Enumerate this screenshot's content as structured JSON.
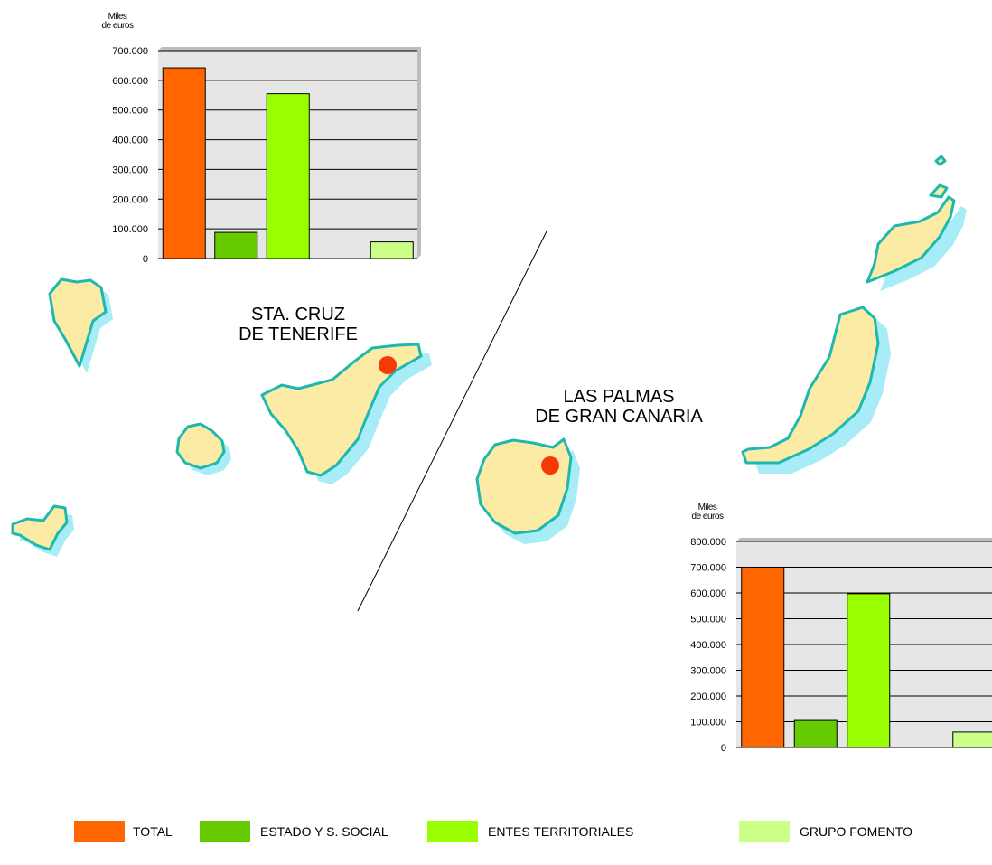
{
  "regions": {
    "tenerife": {
      "line1": "STA. CRUZ",
      "line2": "DE TENERIFE"
    },
    "palmas": {
      "line1": "LAS PALMAS",
      "line2": "DE GRAN CANARIA"
    }
  },
  "colors": {
    "island_fill": "#FBEBA5",
    "island_outline": "#1DB8AE",
    "island_shadow": "#A8ECF8",
    "capital_dot": "#F53A07",
    "plot_bg": "#E6E6E6"
  },
  "chart_data": [
    {
      "type": "bar",
      "region": "STA. CRUZ DE TENERIFE",
      "unit_label": [
        "Miles",
        "de euros"
      ],
      "categories": [
        "TOTAL",
        "ESTADO Y S. SOCIAL",
        "ENTES TERRITORIALES",
        "GRUPO FOMENTO"
      ],
      "slots": [
        0,
        1,
        2,
        4
      ],
      "values": [
        642000,
        88000,
        555000,
        56000
      ],
      "colors": [
        "#FF6600",
        "#66CC00",
        "#99FF00",
        "#CCFF88"
      ],
      "ylim": [
        0,
        700000
      ],
      "yticks": [
        0,
        100000,
        200000,
        300000,
        400000,
        500000,
        600000,
        700000
      ],
      "ytick_labels": [
        "0",
        "100.000",
        "200.000",
        "300.000",
        "400.000",
        "500.000",
        "600.000",
        "700.000"
      ],
      "grid": true
    },
    {
      "type": "bar",
      "region": "LAS PALMAS DE GRAN CANARIA",
      "unit_label": [
        "Miles",
        "de euros"
      ],
      "categories": [
        "TOTAL",
        "ESTADO Y S. SOCIAL",
        "ENTES TERRITORIALES",
        "GRUPO FOMENTO"
      ],
      "slots": [
        0,
        1,
        2,
        4
      ],
      "values": [
        700000,
        105000,
        597000,
        60000
      ],
      "colors": [
        "#FF6600",
        "#66CC00",
        "#99FF00",
        "#CCFF88"
      ],
      "ylim": [
        0,
        800000
      ],
      "yticks": [
        0,
        100000,
        200000,
        300000,
        400000,
        500000,
        600000,
        700000,
        800000
      ],
      "ytick_labels": [
        "0",
        "100.000",
        "200.000",
        "300.000",
        "400.000",
        "500.000",
        "600.000",
        "700.000",
        "800.000"
      ],
      "grid": true
    }
  ],
  "legend": [
    {
      "label": "TOTAL",
      "color": "#FF6600"
    },
    {
      "label": "ESTADO Y S. SOCIAL",
      "color": "#66CC00"
    },
    {
      "label": "ENTES TERRITORIALES",
      "color": "#99FF00"
    },
    {
      "label": "GRUPO FOMENTO",
      "color": "#CCFF88"
    }
  ]
}
